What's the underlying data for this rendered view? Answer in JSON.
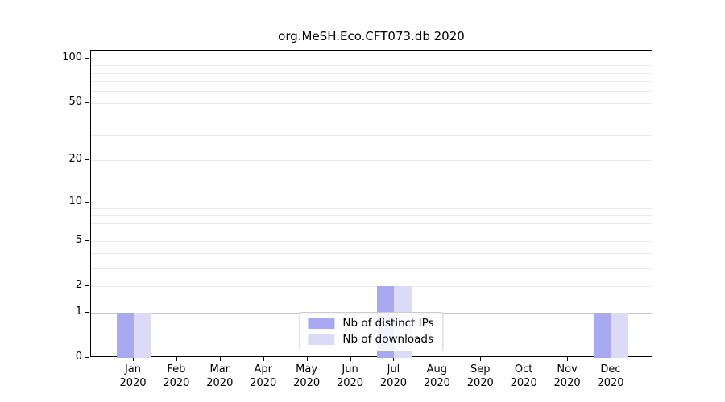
{
  "title": "org.MeSH.Eco.CFT073.db 2020",
  "colors": {
    "distinct_ips_bar": "#a9a9f2",
    "downloads_bar": "#dbdbf8",
    "grid_major": "#c6c6c6",
    "grid_minor": "#eaeaea",
    "axis": "#000000",
    "legend_border": "#cccccc"
  },
  "legend": {
    "items": [
      {
        "label": "Nb of distinct IPs",
        "color": "#a9a9f2"
      },
      {
        "label": "Nb of downloads",
        "color": "#dbdbf8"
      }
    ]
  },
  "chart_data": {
    "type": "bar",
    "title": "org.MeSH.Eco.CFT073.db 2020",
    "categories": [
      "Jan 2020",
      "Feb 2020",
      "Mar 2020",
      "Apr 2020",
      "May 2020",
      "Jun 2020",
      "Jul 2020",
      "Aug 2020",
      "Sep 2020",
      "Oct 2020",
      "Nov 2020",
      "Dec 2020"
    ],
    "series": [
      {
        "name": "Nb of distinct IPs",
        "color": "#a9a9f2",
        "values": [
          1,
          0,
          0,
          0,
          0,
          0,
          2,
          0,
          0,
          0,
          0,
          1
        ]
      },
      {
        "name": "Nb of downloads",
        "color": "#dbdbf8",
        "values": [
          1,
          0,
          0,
          0,
          0,
          0,
          2,
          0,
          0,
          0,
          0,
          1
        ]
      }
    ],
    "xlabel": "",
    "ylabel": "",
    "y_scale": "log1p",
    "y_ticks": [
      0,
      1,
      2,
      5,
      10,
      20,
      50,
      100
    ],
    "y_major_gridlines": [
      1,
      10,
      100
    ],
    "y_minor_gridlines": [
      2,
      3,
      4,
      5,
      6,
      7,
      8,
      9,
      20,
      30,
      40,
      50,
      60,
      70,
      80,
      90
    ],
    "ylim": [
      0,
      113
    ],
    "grid": true,
    "legend_position": "lower center"
  }
}
